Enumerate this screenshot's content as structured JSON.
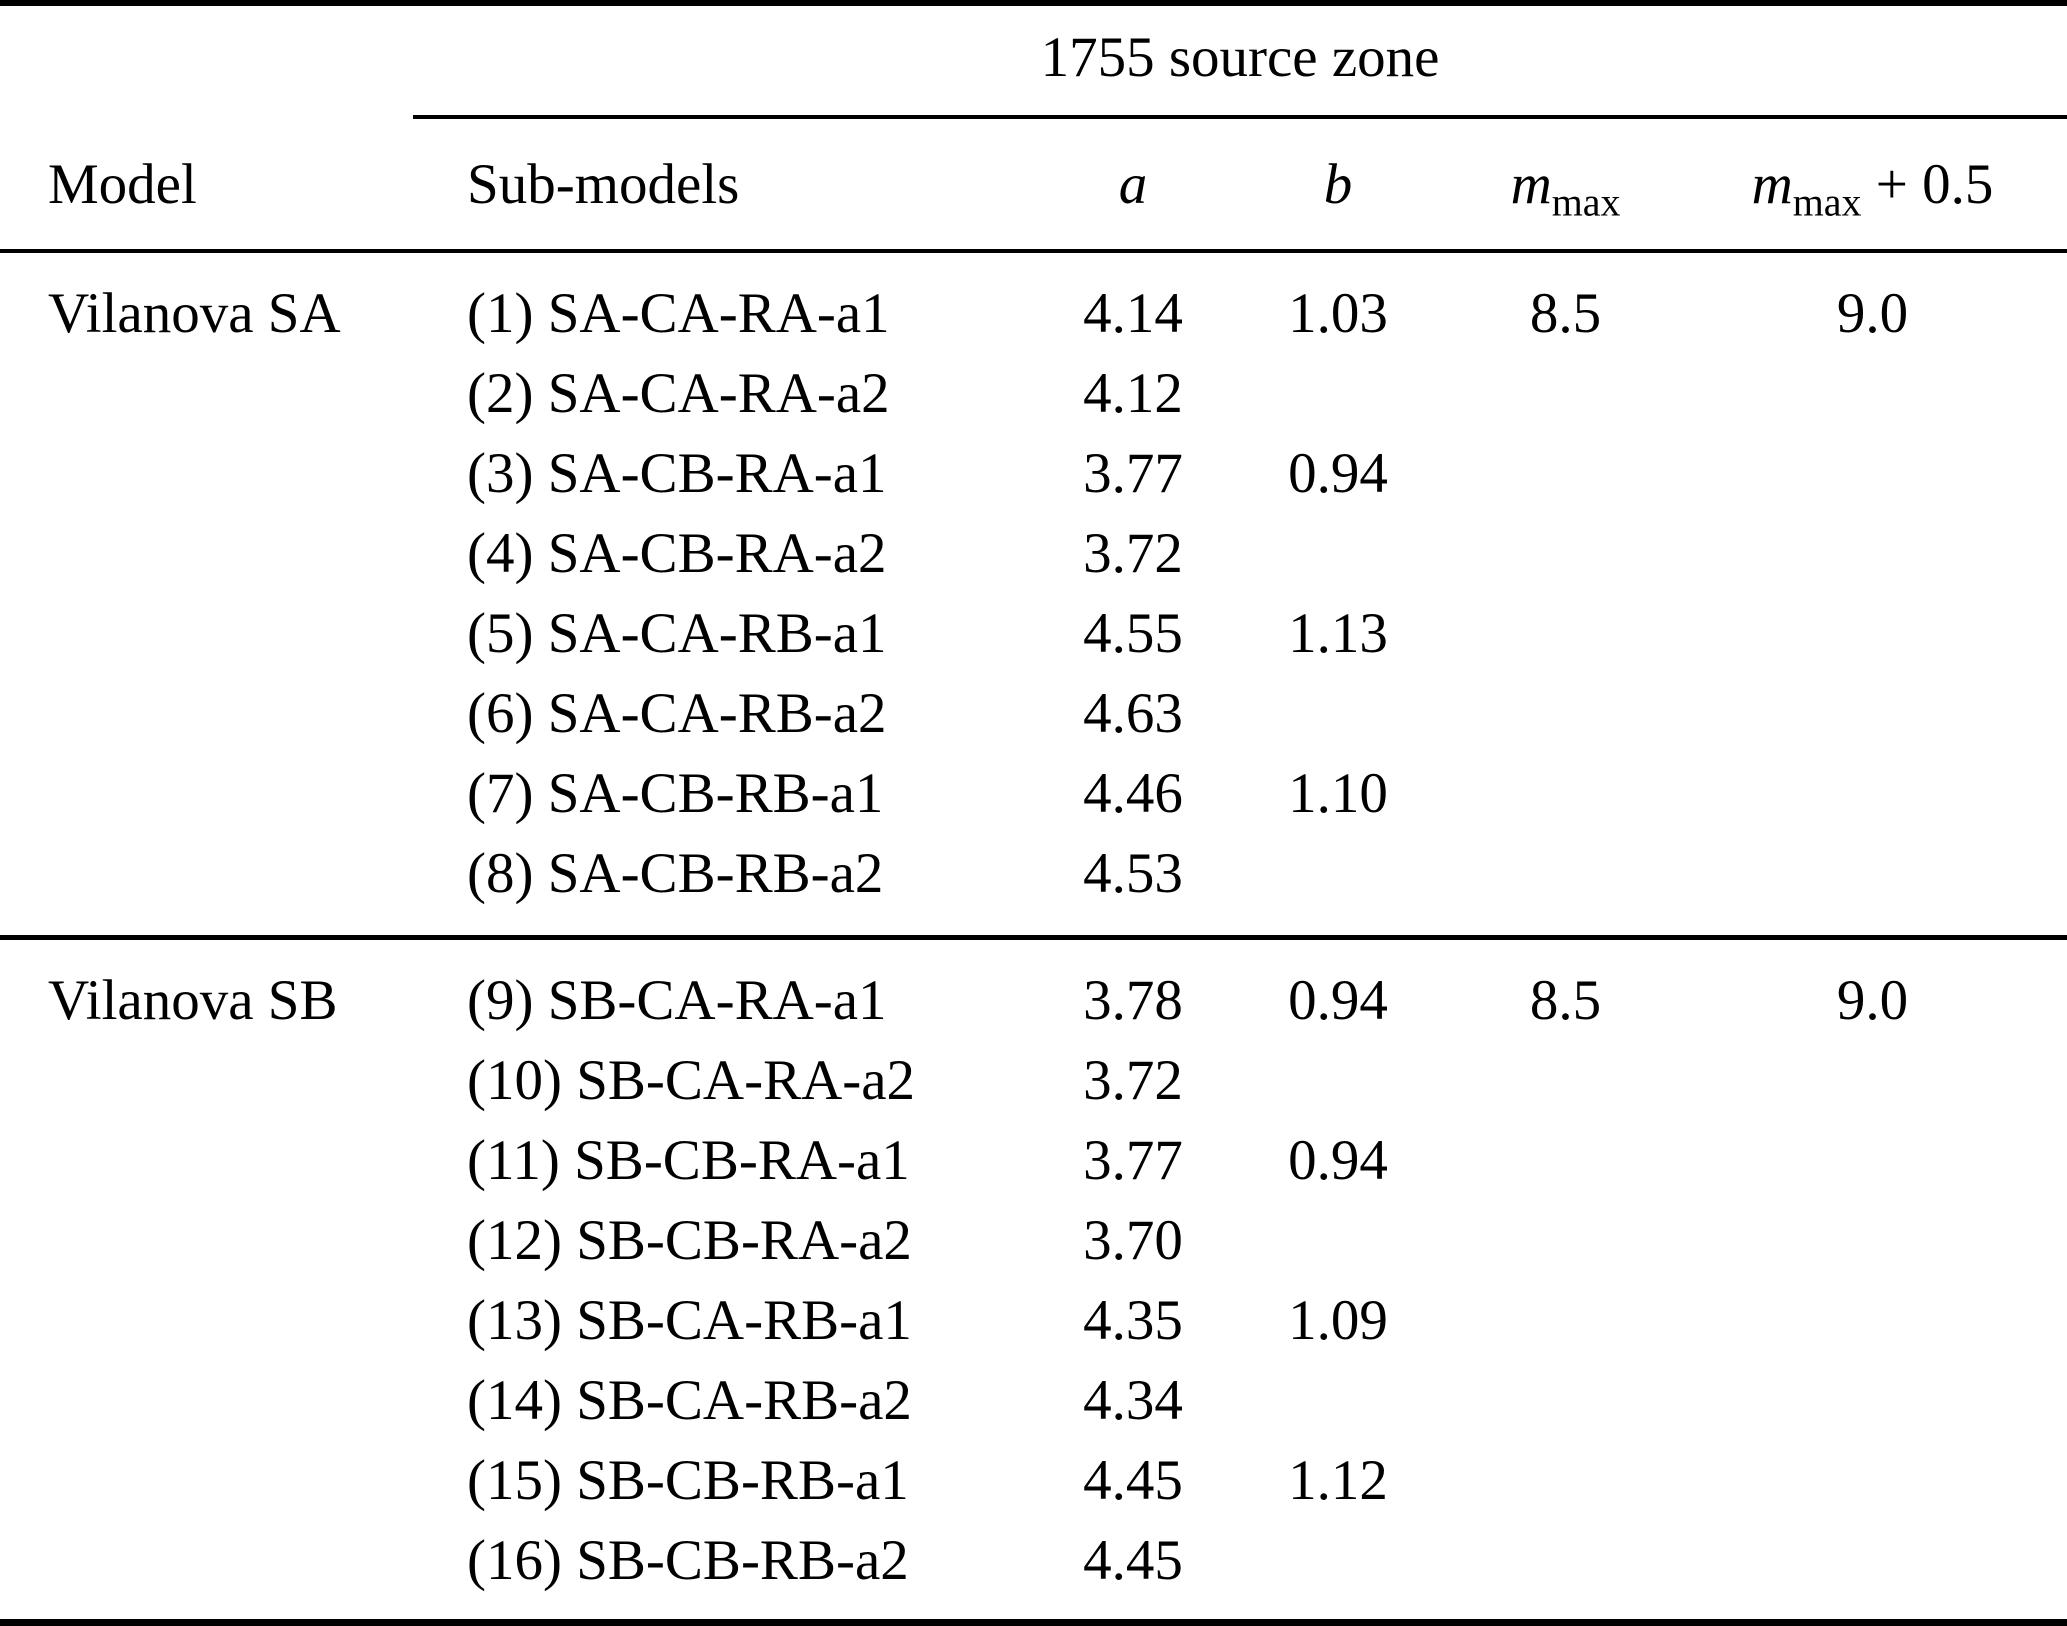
{
  "table": {
    "span_header": "1755 source zone",
    "columns": {
      "model": "Model",
      "sub_models": "Sub-models",
      "a": "a",
      "b": "b",
      "mmax_base": "m",
      "mmax_sub": "max",
      "mmax_plus_base": "m",
      "mmax_plus_sub": "max",
      "mmax_plus_suffix": " + 0.5"
    },
    "sections": [
      {
        "model": "Vilanova SA",
        "rows": [
          {
            "sub": "(1) SA-CA-RA-a1",
            "a": "4.14",
            "b": "1.03",
            "mmax": "8.5",
            "mmax_plus": "9.0"
          },
          {
            "sub": "(2) SA-CA-RA-a2",
            "a": "4.12",
            "b": "",
            "mmax": "",
            "mmax_plus": ""
          },
          {
            "sub": "(3) SA-CB-RA-a1",
            "a": "3.77",
            "b": "0.94",
            "mmax": "",
            "mmax_plus": ""
          },
          {
            "sub": "(4) SA-CB-RA-a2",
            "a": "3.72",
            "b": "",
            "mmax": "",
            "mmax_plus": ""
          },
          {
            "sub": "(5) SA-CA-RB-a1",
            "a": "4.55",
            "b": "1.13",
            "mmax": "",
            "mmax_plus": ""
          },
          {
            "sub": "(6) SA-CA-RB-a2",
            "a": "4.63",
            "b": "",
            "mmax": "",
            "mmax_plus": ""
          },
          {
            "sub": "(7) SA-CB-RB-a1",
            "a": "4.46",
            "b": "1.10",
            "mmax": "",
            "mmax_plus": ""
          },
          {
            "sub": "(8) SA-CB-RB-a2",
            "a": "4.53",
            "b": "",
            "mmax": "",
            "mmax_plus": ""
          }
        ]
      },
      {
        "model": "Vilanova SB",
        "rows": [
          {
            "sub": "(9) SB-CA-RA-a1",
            "a": "3.78",
            "b": "0.94",
            "mmax": "8.5",
            "mmax_plus": "9.0"
          },
          {
            "sub": "(10) SB-CA-RA-a2",
            "a": "3.72",
            "b": "",
            "mmax": "",
            "mmax_plus": ""
          },
          {
            "sub": "(11) SB-CB-RA-a1",
            "a": "3.77",
            "b": "0.94",
            "mmax": "",
            "mmax_plus": ""
          },
          {
            "sub": "(12) SB-CB-RA-a2",
            "a": "3.70",
            "b": "",
            "mmax": "",
            "mmax_plus": ""
          },
          {
            "sub": "(13) SB-CA-RB-a1",
            "a": "4.35",
            "b": "1.09",
            "mmax": "",
            "mmax_plus": ""
          },
          {
            "sub": "(14) SB-CA-RB-a2",
            "a": "4.34",
            "b": "",
            "mmax": "",
            "mmax_plus": ""
          },
          {
            "sub": "(15) SB-CB-RB-a1",
            "a": "4.45",
            "b": "1.12",
            "mmax": "",
            "mmax_plus": ""
          },
          {
            "sub": "(16) SB-CB-RB-a2",
            "a": "4.45",
            "b": "",
            "mmax": "",
            "mmax_plus": ""
          }
        ]
      }
    ]
  }
}
